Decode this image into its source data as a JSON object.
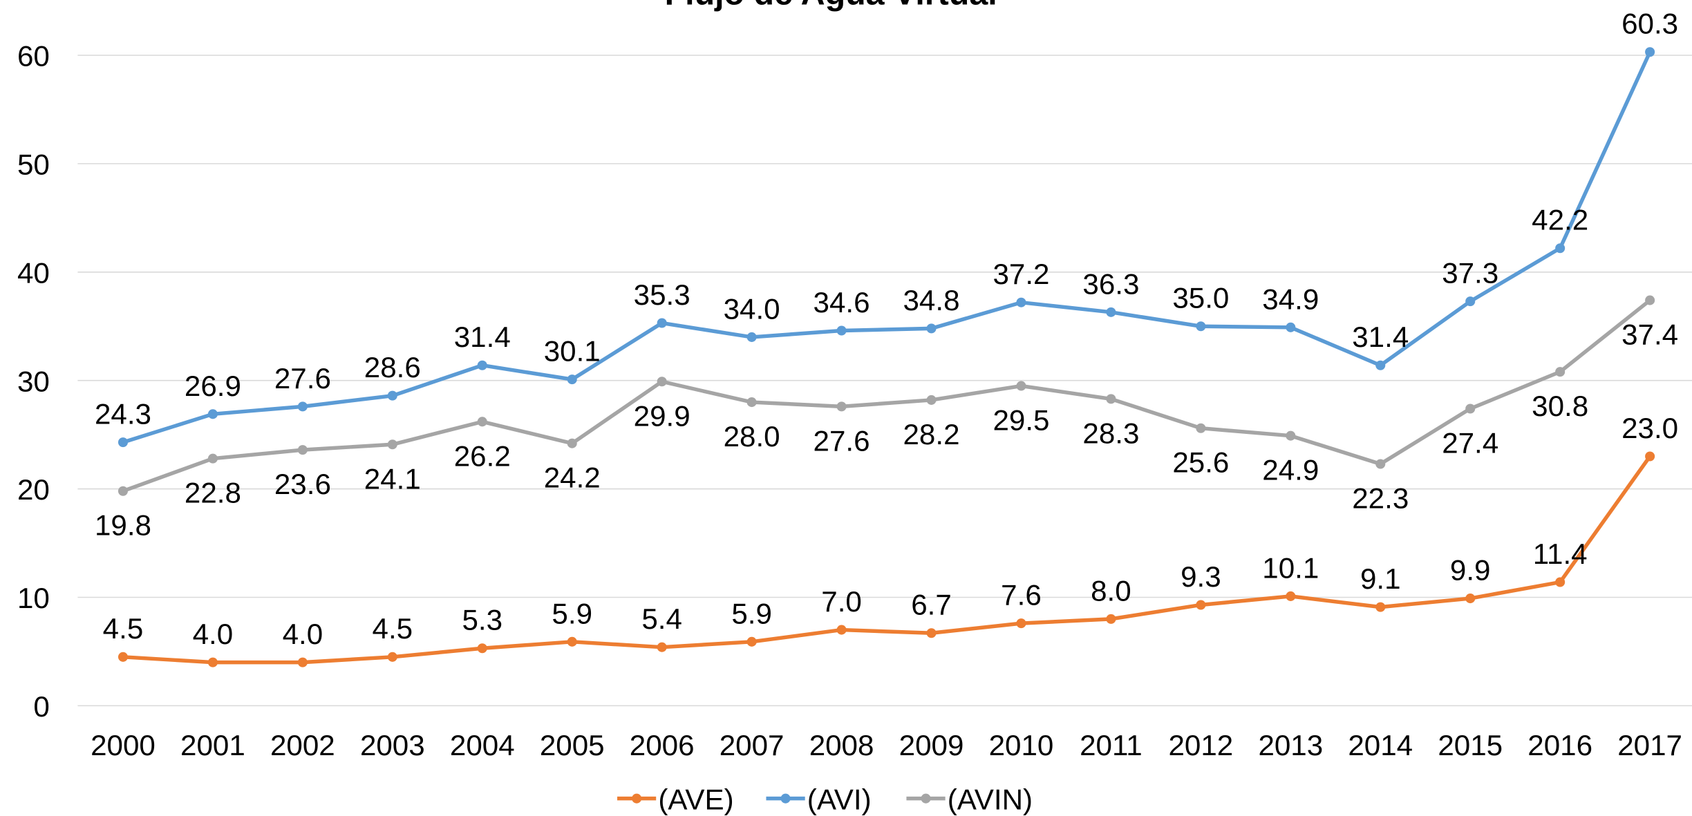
{
  "chart_data": {
    "type": "line",
    "title": "Flujo de Agua Virtual",
    "categories": [
      "2000",
      "2001",
      "2002",
      "2003",
      "2004",
      "2005",
      "2006",
      "2007",
      "2008",
      "2009",
      "2010",
      "2011",
      "2012",
      "2013",
      "2014",
      "2015",
      "2016",
      "2017"
    ],
    "series": [
      {
        "name": "(AVE)",
        "color": "#ed7d31",
        "values": [
          4.5,
          4.0,
          4.0,
          4.5,
          5.3,
          5.9,
          5.4,
          5.9,
          7.0,
          6.7,
          7.6,
          8.0,
          9.3,
          10.1,
          9.1,
          9.9,
          11.4,
          23.0
        ],
        "value_labels": [
          "4.5",
          "4.0",
          "4.0",
          "4.5",
          "5.3",
          "5.9",
          "5.4",
          "5.9",
          "7.0",
          "6.7",
          "7.6",
          "8.0",
          "9.3",
          "10.1",
          "9.1",
          "9.9",
          "11.4",
          "23.0"
        ]
      },
      {
        "name": "(AVI)",
        "color": "#5b9bd5",
        "values": [
          24.3,
          26.9,
          27.6,
          28.6,
          31.4,
          30.1,
          35.3,
          34.0,
          34.6,
          34.8,
          37.2,
          36.3,
          35.0,
          34.9,
          31.4,
          37.3,
          42.2,
          60.3
        ],
        "value_labels": [
          "24.3",
          "26.9",
          "27.6",
          "28.6",
          "31.4",
          "30.1",
          "35.3",
          "34.0",
          "34.6",
          "34.8",
          "37.2",
          "36.3",
          "35.0",
          "34.9",
          "31.4",
          "37.3",
          "42.2",
          "60.3"
        ]
      },
      {
        "name": "(AVIN)",
        "color": "#a5a5a5",
        "values": [
          19.8,
          22.8,
          23.6,
          24.1,
          26.2,
          24.2,
          29.9,
          28.0,
          27.6,
          28.2,
          29.5,
          28.3,
          25.6,
          24.9,
          22.3,
          27.4,
          30.8,
          37.4
        ],
        "value_labels": [
          "19.8",
          "22.8",
          "23.6",
          "24.1",
          "26.2",
          "24.2",
          "29.9",
          "28.0",
          "27.6",
          "28.2",
          "29.5",
          "28.3",
          "25.6",
          "24.9",
          "22.3",
          "27.4",
          "30.8",
          "37.4"
        ]
      }
    ],
    "ylim": [
      0,
      60
    ],
    "yticks": [
      0,
      10,
      20,
      30,
      40,
      50,
      60
    ],
    "grid": true,
    "legend": "bottom"
  }
}
